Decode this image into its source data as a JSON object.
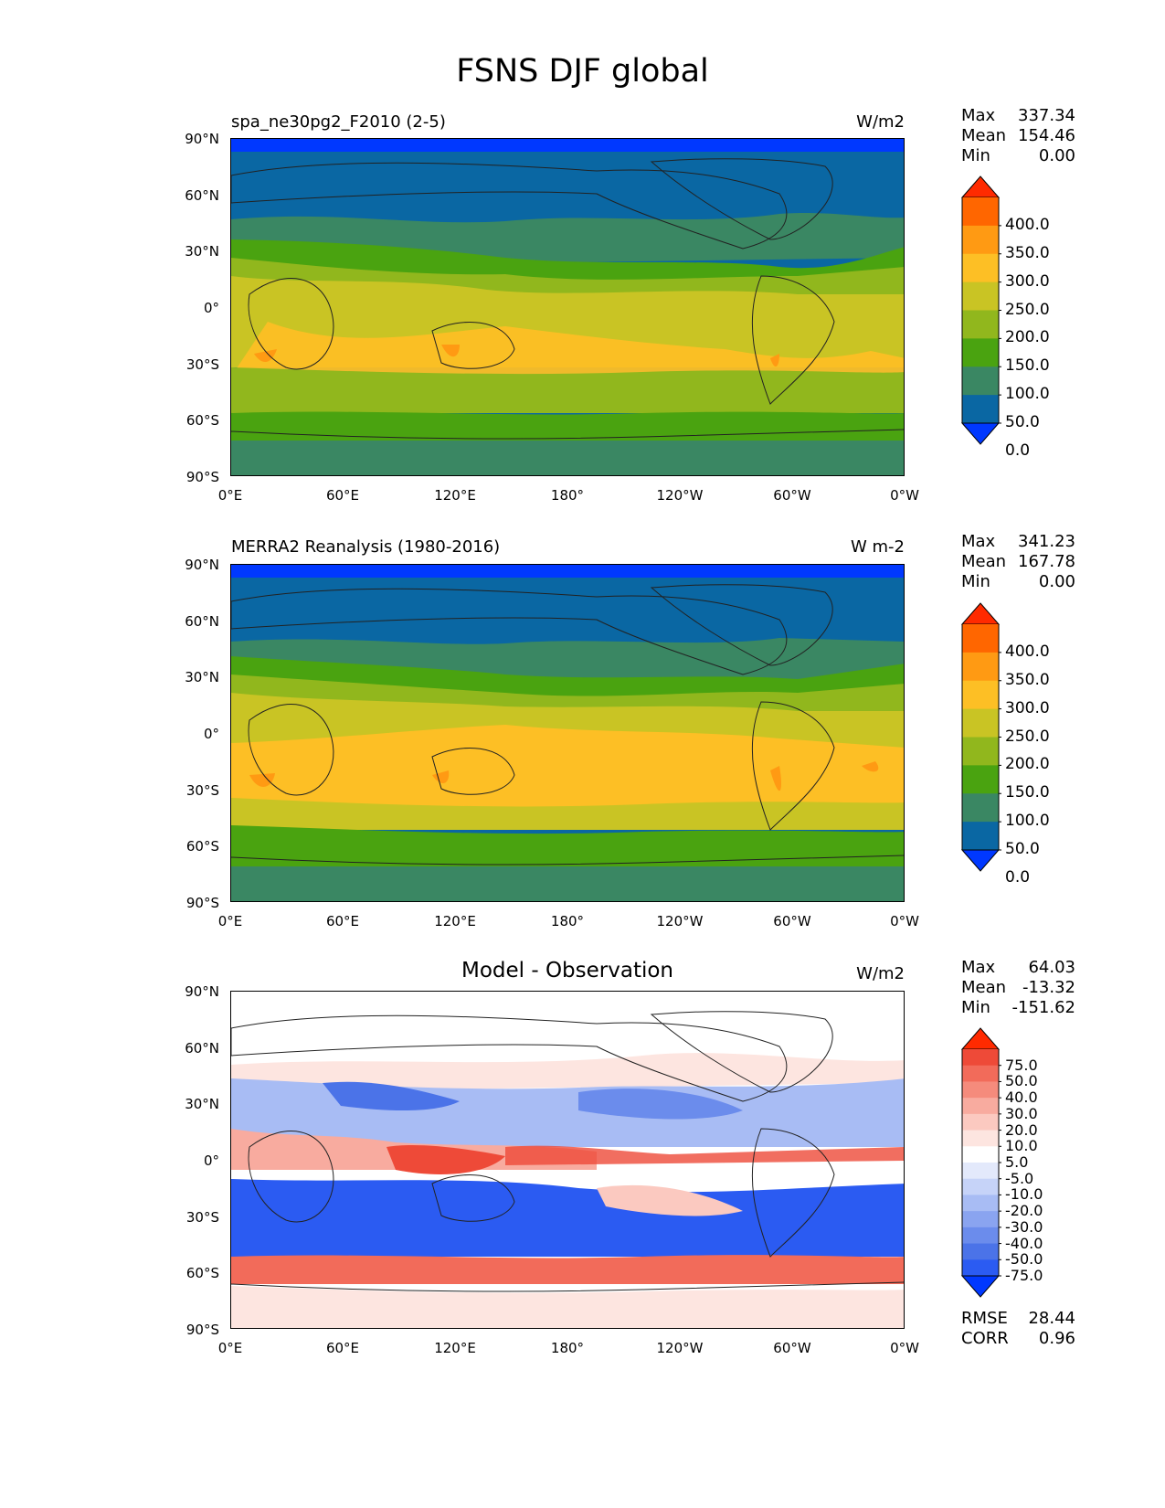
{
  "figure": {
    "title": "FSNS DJF global"
  },
  "axes": {
    "lat_labels": [
      "90°N",
      "60°N",
      "30°N",
      "0°",
      "30°S",
      "60°S",
      "90°S"
    ],
    "lon_labels": [
      "0°E",
      "60°E",
      "120°E",
      "180°",
      "120°W",
      "60°W",
      "0°W"
    ]
  },
  "panels": [
    {
      "left_title": "spa_ne30pg2_F2010 (2-5)",
      "units": "W/m2",
      "stats": {
        "max_label": "Max",
        "max": "337.34",
        "mean_label": "Mean",
        "mean": "154.46",
        "min_label": "Min",
        "min": "0.00"
      },
      "colorbar": {
        "labels": [
          "400.0",
          "350.0",
          "300.0",
          "250.0",
          "200.0",
          "150.0",
          "100.0",
          "50.0",
          "0.0"
        ],
        "colors": [
          "#ff2a00",
          "#ff6600",
          "#ff9a13",
          "#fdbf25",
          "#c9c424",
          "#91b71d",
          "#4aa310",
          "#3a8763",
          "#0a67a3",
          "#0038ff"
        ]
      }
    },
    {
      "left_title": "MERRA2 Reanalysis (1980-2016)",
      "units": "W m-2",
      "stats": {
        "max_label": "Max",
        "max": "341.23",
        "mean_label": "Mean",
        "mean": "167.78",
        "min_label": "Min",
        "min": "0.00"
      },
      "colorbar": {
        "labels": [
          "400.0",
          "350.0",
          "300.0",
          "250.0",
          "200.0",
          "150.0",
          "100.0",
          "50.0",
          "0.0"
        ],
        "colors": [
          "#ff2a00",
          "#ff6600",
          "#ff9a13",
          "#fdbf25",
          "#c9c424",
          "#91b71d",
          "#4aa310",
          "#3a8763",
          "#0a67a3",
          "#0038ff"
        ]
      }
    },
    {
      "center_title": "Model - Observation",
      "units": "W/m2",
      "stats": {
        "max_label": "Max",
        "max": "64.03",
        "mean_label": "Mean",
        "mean": "-13.32",
        "min_label": "Min",
        "min": "-151.62"
      },
      "colorbar": {
        "labels": [
          "75.0",
          "50.0",
          "40.0",
          "30.0",
          "20.0",
          "10.0",
          "5.0",
          "-5.0",
          "-10.0",
          "-20.0",
          "-30.0",
          "-40.0",
          "-50.0",
          "-75.0"
        ],
        "colors": [
          "#ff2a00",
          "#ee4a38",
          "#f26b5a",
          "#f58b7c",
          "#f8ab9f",
          "#fbc9c0",
          "#fde5e0",
          "#ffffff",
          "#e3e9fb",
          "#c6d3f8",
          "#a8bcf4",
          "#8aa4f0",
          "#6b8cec",
          "#4b73e8",
          "#2b5bf2",
          "#0038ff"
        ]
      },
      "rmse_label": "RMSE",
      "rmse": "28.44",
      "corr_label": "CORR",
      "corr": "0.96"
    }
  ],
  "colors": {
    "field_deep_blue": "#0038ff",
    "field_blue": "#0a67a3",
    "field_teal": "#3a8763",
    "field_green": "#4aa310",
    "field_lightgreen": "#91b71d",
    "field_olive": "#c9c424",
    "field_yellow": "#fdbf25",
    "field_orange": "#ff9a13",
    "diff_red": "#ff3a20",
    "diff_blue": "#1f4ff0"
  }
}
